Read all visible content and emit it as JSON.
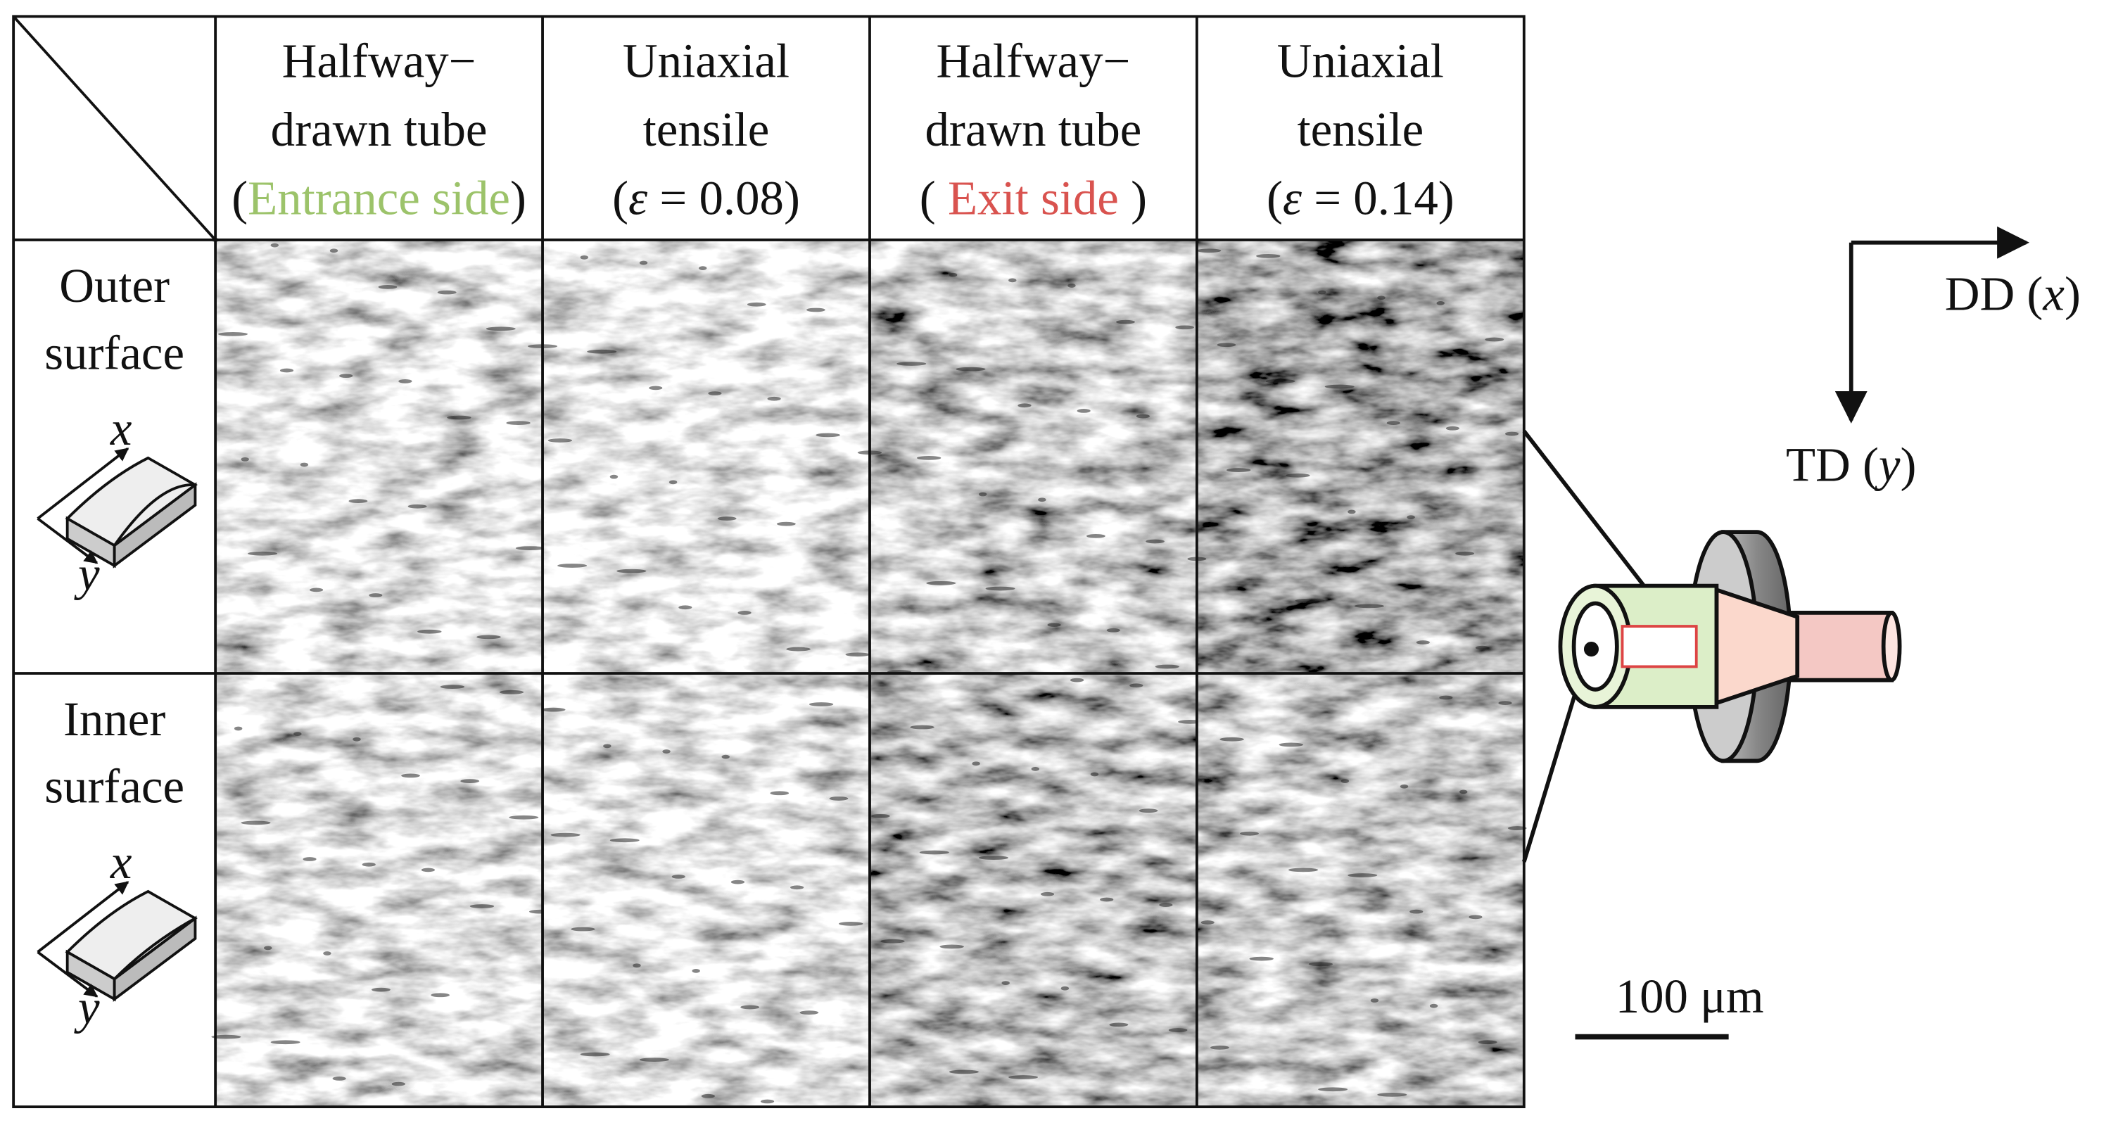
{
  "header_columns": [
    {
      "lines": [
        "Halfway−",
        "drawn tube"
      ],
      "note": [
        "(",
        "Entrance side",
        ")"
      ]
    },
    {
      "lines": [
        "Uniaxial",
        "tensile"
      ],
      "note": [
        "(",
        "ε",
        " = 0.08)"
      ]
    },
    {
      "lines": [
        "Halfway−",
        "drawn tube"
      ],
      "note": [
        "( ",
        "Exit side",
        " )"
      ]
    },
    {
      "lines": [
        "Uniaxial",
        "tensile"
      ],
      "note": [
        "(",
        "ε",
        " = 0.14)"
      ]
    }
  ],
  "rows": [
    {
      "lines": [
        "Outer",
        "surface"
      ],
      "x": "x",
      "y": "y"
    },
    {
      "lines": [
        "Inner",
        "surface"
      ],
      "x": "x",
      "y": "y"
    }
  ],
  "axes": {
    "dd": [
      "DD (",
      "x",
      ")"
    ],
    "td": [
      "TD (",
      "y",
      ")"
    ]
  },
  "scale_bar": "100 μm"
}
